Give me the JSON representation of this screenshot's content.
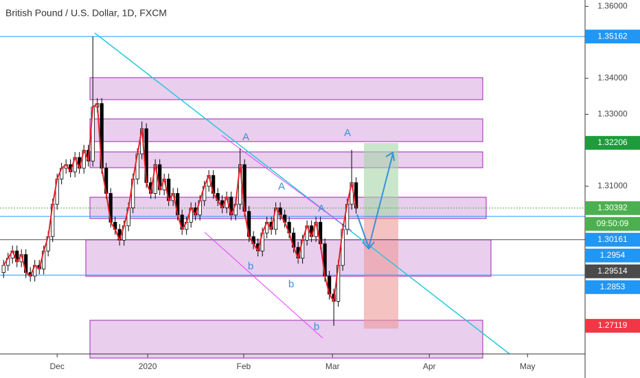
{
  "chart_data": {
    "type": "candlestick",
    "title": "British Pound / U.S. Dollar, 1D, FXCM",
    "open": [
      1.286,
      1.288,
      1.29,
      1.292,
      1.289,
      1.291,
      1.286,
      1.285,
      1.288,
      1.287,
      1.292,
      1.296,
      1.305,
      1.312,
      1.315,
      1.316,
      1.314,
      1.318,
      1.315,
      1.32,
      1.317,
      1.332,
      1.333,
      1.315,
      1.308,
      1.3,
      1.298,
      1.295,
      1.299,
      1.304,
      1.312,
      1.319,
      1.326,
      1.311,
      1.308,
      1.316,
      1.309,
      1.312,
      1.306,
      1.308,
      1.302,
      1.298,
      1.3,
      1.304,
      1.302,
      1.306,
      1.31,
      1.313,
      1.308,
      1.306,
      1.304,
      1.307,
      1.302,
      1.305,
      1.316,
      1.303,
      1.296,
      1.294,
      1.292,
      1.297,
      1.3,
      1.298,
      1.304,
      1.302,
      1.3,
      1.297,
      1.293,
      1.29,
      1.295,
      1.299,
      1.296,
      1.3,
      1.294,
      1.285,
      1.28,
      1.278,
      1.288,
      1.298,
      1.305,
      1.311
    ],
    "high": [
      1.2895,
      1.2915,
      1.2935,
      1.2935,
      1.2925,
      1.2925,
      1.2875,
      1.2895,
      1.2895,
      1.2935,
      1.2975,
      1.3065,
      1.3135,
      1.3165,
      1.3175,
      1.3175,
      1.3195,
      1.3195,
      1.3215,
      1.3215,
      1.3516,
      1.3345,
      1.3345,
      1.3165,
      1.3095,
      1.3015,
      1.2995,
      1.3005,
      1.3055,
      1.3135,
      1.3205,
      1.328,
      1.3275,
      1.3125,
      1.3175,
      1.3175,
      1.3135,
      1.3135,
      1.3095,
      1.3095,
      1.3035,
      1.3015,
      1.3055,
      1.3055,
      1.3075,
      1.3115,
      1.3145,
      1.3145,
      1.3095,
      1.3075,
      1.3085,
      1.3085,
      1.3065,
      1.3205,
      1.3175,
      1.3045,
      1.2975,
      1.2955,
      1.2985,
      1.3015,
      1.3015,
      1.3055,
      1.3055,
      1.3035,
      1.3015,
      1.2985,
      1.2945,
      1.2965,
      1.3005,
      1.3005,
      1.3015,
      1.3015,
      1.2955,
      1.2865,
      1.2815,
      1.2895,
      1.2995,
      1.3065,
      1.3201,
      1.3125
    ],
    "low": [
      1.2845,
      1.2865,
      1.2885,
      1.2875,
      1.2875,
      1.2845,
      1.2835,
      1.2835,
      1.2855,
      1.2855,
      1.2905,
      1.2945,
      1.3035,
      1.3105,
      1.3135,
      1.3125,
      1.3125,
      1.3135,
      1.3135,
      1.3155,
      1.3155,
      1.3305,
      1.3135,
      1.3065,
      1.2985,
      1.2965,
      1.2935,
      1.2935,
      1.2975,
      1.3025,
      1.3105,
      1.3175,
      1.3095,
      1.3065,
      1.3065,
      1.3075,
      1.3075,
      1.3045,
      1.3045,
      1.3005,
      1.2965,
      1.2965,
      1.2985,
      1.3005,
      1.3005,
      1.3045,
      1.3085,
      1.3065,
      1.3045,
      1.3025,
      1.3025,
      1.3005,
      1.3005,
      1.3035,
      1.3015,
      1.2945,
      1.2925,
      1.2905,
      1.2905,
      1.2955,
      1.2965,
      1.2965,
      1.3005,
      1.2985,
      1.2955,
      1.2915,
      1.2885,
      1.2885,
      1.2935,
      1.2945,
      1.2945,
      1.2925,
      1.2835,
      1.2785,
      1.2712,
      1.2765,
      1.2865,
      1.2965,
      1.3035,
      1.3024
    ],
    "close": [
      1.288,
      1.29,
      1.292,
      1.289,
      1.291,
      1.286,
      1.285,
      1.288,
      1.287,
      1.292,
      1.296,
      1.305,
      1.312,
      1.315,
      1.316,
      1.314,
      1.318,
      1.315,
      1.32,
      1.317,
      1.332,
      1.333,
      1.315,
      1.308,
      1.3,
      1.298,
      1.295,
      1.299,
      1.304,
      1.312,
      1.319,
      1.326,
      1.311,
      1.308,
      1.316,
      1.309,
      1.312,
      1.306,
      1.308,
      1.302,
      1.298,
      1.3,
      1.304,
      1.302,
      1.306,
      1.31,
      1.313,
      1.308,
      1.306,
      1.304,
      1.307,
      1.302,
      1.305,
      1.316,
      1.303,
      1.296,
      1.294,
      1.292,
      1.297,
      1.3,
      1.298,
      1.304,
      1.302,
      1.3,
      1.297,
      1.293,
      1.29,
      1.295,
      1.299,
      1.296,
      1.3,
      1.294,
      1.285,
      1.28,
      1.278,
      1.288,
      1.298,
      1.305,
      1.311,
      1.3039
    ],
    "line_color": "#e8212b",
    "xlim": [
      -0.8,
      130.3
    ],
    "xticks": [
      {
        "value": 12,
        "label": "Dec"
      },
      {
        "value": 32.3,
        "label": "2020"
      },
      {
        "value": 53.8,
        "label": "Feb"
      },
      {
        "value": 73.7,
        "label": "Mar"
      },
      {
        "value": 95.4,
        "label": "Apr"
      },
      {
        "value": 117.4,
        "label": "May"
      }
    ],
    "ylim": [
      1.26337,
      1.36178
    ],
    "yticks": [
      {
        "value": 1.36,
        "label": "1.36000"
      },
      {
        "value": 1.34,
        "label": "1.34000"
      },
      {
        "value": 1.33,
        "label": "1.33000"
      },
      {
        "value": 1.31,
        "label": "1.31000"
      }
    ],
    "price_labels": [
      {
        "value": 1.35162,
        "color": "#2196f3",
        "line": true
      },
      {
        "value": 1.32206,
        "color": "#1e9b3b",
        "line": false
      },
      {
        "value": 1.30392,
        "color": "#4caf50",
        "line": false
      },
      {
        "value": 1.30161,
        "color": "#2196f3",
        "line": true
      },
      {
        "value": 1.2954,
        "color": "#2196f3",
        "line": false
      },
      {
        "value": 1.29514,
        "color": "#4a4a4a",
        "line": true
      },
      {
        "value": 1.2853,
        "color": "#2196f3",
        "line": true
      },
      {
        "value": 1.27119,
        "color": "#f23645",
        "line": false
      }
    ],
    "countdown": "09:50:09",
    "annotations": [
      "A",
      "A",
      "A",
      "A",
      "b",
      "b",
      "b"
    ]
  }
}
